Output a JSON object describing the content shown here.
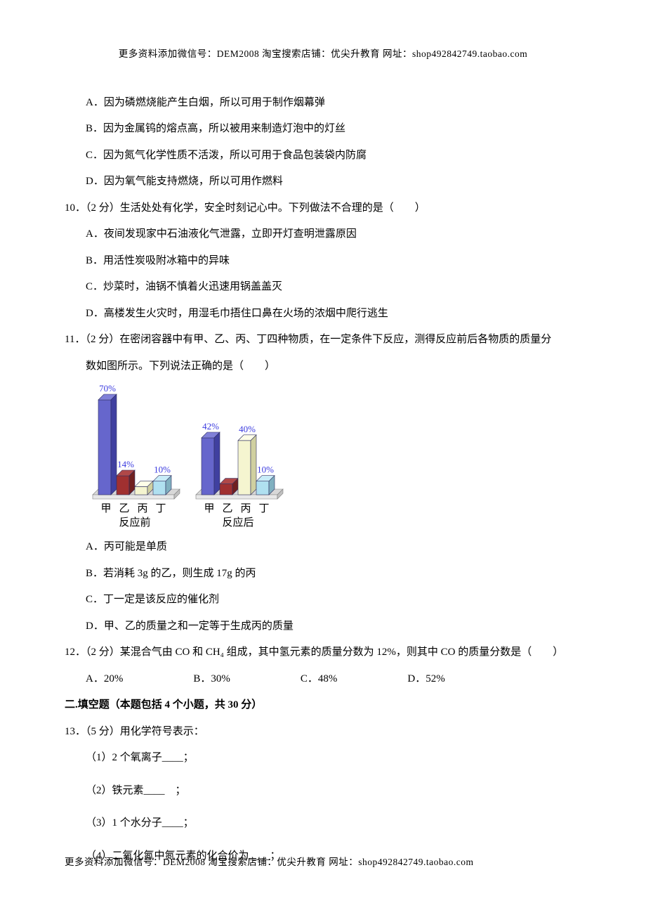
{
  "header": "更多资料添加微信号：DEM2008    淘宝搜索店铺：优尖升教育  网址：shop492842749.taobao.com",
  "footer": "更多资料添加微信号：DEM2008    淘宝搜索店铺：优尖升教育  网址：shop492842749.taobao.com",
  "q9": {
    "a": "A．因为磷燃烧能产生白烟，所以可用于制作烟幕弹",
    "b": "B．因为金属钨的熔点高，所以被用来制造灯泡中的灯丝",
    "c": "C．因为氮气化学性质不活泼，所以可用于食品包装袋内防腐",
    "d": "D．因为氧气能支持燃烧，所以可用作燃料"
  },
  "q10": {
    "stem": "10．（2 分）生活处处有化学，安全时刻记心中。下列做法不合理的是（　　）",
    "a": "A．夜间发现家中石油液化气泄露，立即开灯查明泄露原因",
    "b": "B．用活性炭吸附冰箱中的异味",
    "c": "C．炒菜时，油锅不慎着火迅速用锅盖盖灭",
    "d": "D．高楼发生火灾时，用湿毛巾捂住口鼻在火场的浓烟中爬行逃生"
  },
  "q11": {
    "stem1": "11．（2 分）在密闭容器中有甲、乙、丙、丁四种物质，在一定条件下反应，测得反应前后各物质的质量分",
    "stem2": "数如图所示。下列说法正确的是（　　）",
    "a": "A．丙可能是单质",
    "b": "B．若消耗 3g 的乙，则生成 17g 的丙",
    "c": "C．丁一定是该反应的催化剂",
    "d": "D．甲、乙的质量之和一定等于生成丙的质量"
  },
  "q12": {
    "stem": "12．（2 分）某混合气由 CO 和 CH₄ 组成，其中氢元素的质量分数为 12%，则其中 CO 的质量分数是（　　）",
    "a": "A．20%",
    "b": "B．30%",
    "c": "C．48%",
    "d": "D．52%"
  },
  "section2": "二.填空题（本题包括 4 个小题，共 30 分）",
  "q13": {
    "stem": "13．（5 分）用化学符号表示：",
    "p1": "（1）2 个氧离子____；",
    "p2": "（2）铁元素____　；",
    "p3": "（3）1 个水分子____；",
    "p4": "（4）二氧化氮中氮元素的化合价为____；"
  },
  "chart": {
    "before": {
      "labels": [
        "甲",
        "乙",
        "丙",
        "丁"
      ],
      "title": "反应前",
      "values": [
        70,
        14,
        6,
        10
      ],
      "value_labels": [
        "70%",
        "14%",
        "",
        "10%"
      ],
      "colors": [
        "#6666cc",
        "#a03030",
        "#f5f5d0",
        "#b0e0f0"
      ],
      "sides": [
        "#4040a0",
        "#702020",
        "#d0d0a0",
        "#80b0c0"
      ],
      "tops": [
        "#8080d8",
        "#b04848",
        "#ffffe8",
        "#c8ecf8"
      ]
    },
    "after": {
      "labels": [
        "甲",
        "乙",
        "丙",
        "丁"
      ],
      "title": "反应后",
      "values": [
        42,
        8,
        40,
        10
      ],
      "value_labels": [
        "42%",
        "",
        "40%",
        "10%"
      ],
      "colors": [
        "#6666cc",
        "#a03030",
        "#f5f5d0",
        "#b0e0f0"
      ],
      "sides": [
        "#4040a0",
        "#702020",
        "#d0d0a0",
        "#80b0c0"
      ],
      "tops": [
        "#8080d8",
        "#b04848",
        "#ffffe8",
        "#c8ecf8"
      ]
    },
    "text_color": "#3a3adf",
    "axis_color": "#000000",
    "label_fontsize": 15,
    "value_fontsize": 13
  }
}
